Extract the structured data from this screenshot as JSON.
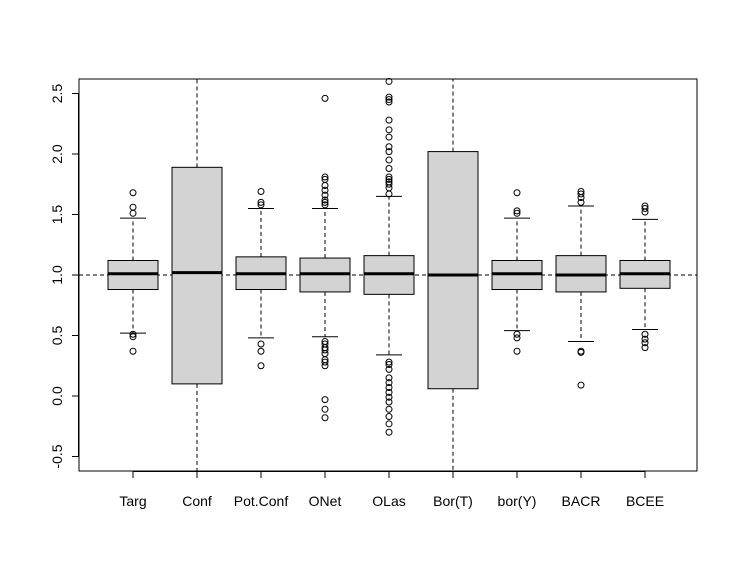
{
  "chart_data": {
    "type": "box",
    "title": "",
    "xlabel": "",
    "ylabel": "",
    "ylim": [
      -0.62,
      2.62
    ],
    "yticks": [
      -0.5,
      0.0,
      0.5,
      1.0,
      1.5,
      2.0,
      2.5
    ],
    "ytick_labels": [
      "-0.5",
      "0.0",
      "0.5",
      "1.0",
      "1.5",
      "2.0",
      "2.5"
    ],
    "reference_line": 1.0,
    "box_fill": "#d3d3d3",
    "categories": [
      "Targ",
      "Conf",
      "Pot.Conf",
      "ONet",
      "OLas",
      "Bor(T)",
      "bor(Y)",
      "BACR",
      "BCEE"
    ],
    "boxes": [
      {
        "name": "Targ",
        "lower_whisker": 0.52,
        "q1": 0.88,
        "median": 1.01,
        "q3": 1.12,
        "upper_whisker": 1.47,
        "outliers": [
          0.37,
          0.49,
          0.51,
          1.51,
          1.56,
          1.68
        ]
      },
      {
        "name": "Conf",
        "lower_whisker": -0.62,
        "q1": 0.1,
        "median": 1.02,
        "q3": 1.89,
        "upper_whisker": 2.62,
        "outliers": []
      },
      {
        "name": "Pot.Conf",
        "lower_whisker": 0.48,
        "q1": 0.88,
        "median": 1.01,
        "q3": 1.15,
        "upper_whisker": 1.55,
        "outliers": [
          0.25,
          0.37,
          0.43,
          1.58,
          1.6,
          1.69
        ]
      },
      {
        "name": "ONet",
        "lower_whisker": 0.49,
        "q1": 0.86,
        "median": 1.01,
        "q3": 1.14,
        "upper_whisker": 1.55,
        "outliers": [
          -0.18,
          -0.11,
          -0.03,
          0.25,
          0.28,
          0.3,
          0.35,
          0.38,
          0.4,
          0.43,
          0.45,
          1.58,
          1.6,
          1.62,
          1.66,
          1.7,
          1.74,
          1.79,
          1.81,
          2.46
        ]
      },
      {
        "name": "OLas",
        "lower_whisker": 0.34,
        "q1": 0.84,
        "median": 1.01,
        "q3": 1.16,
        "upper_whisker": 1.65,
        "outliers": [
          -0.3,
          -0.23,
          -0.17,
          -0.11,
          -0.05,
          -0.01,
          0.03,
          0.07,
          0.11,
          0.15,
          0.22,
          0.26,
          0.28,
          1.67,
          1.72,
          1.75,
          1.77,
          1.79,
          1.81,
          1.88,
          1.95,
          2.02,
          2.06,
          2.14,
          2.2,
          2.28,
          2.43,
          2.45,
          2.47,
          2.6
        ]
      },
      {
        "name": "Bor(T)",
        "lower_whisker": -0.62,
        "q1": 0.06,
        "median": 1.0,
        "q3": 2.02,
        "upper_whisker": 2.62,
        "outliers": []
      },
      {
        "name": "bor(Y)",
        "lower_whisker": 0.54,
        "q1": 0.88,
        "median": 1.01,
        "q3": 1.12,
        "upper_whisker": 1.47,
        "outliers": [
          0.37,
          0.48,
          0.51,
          1.51,
          1.53,
          1.68
        ]
      },
      {
        "name": "BACR",
        "lower_whisker": 0.45,
        "q1": 0.86,
        "median": 1.0,
        "q3": 1.16,
        "upper_whisker": 1.57,
        "outliers": [
          0.09,
          0.36,
          0.37,
          1.6,
          1.64,
          1.67,
          1.69
        ]
      },
      {
        "name": "BCEE",
        "lower_whisker": 0.55,
        "q1": 0.89,
        "median": 1.01,
        "q3": 1.12,
        "upper_whisker": 1.46,
        "outliers": [
          0.4,
          0.44,
          0.47,
          0.51,
          1.52,
          1.55,
          1.57
        ]
      }
    ]
  }
}
